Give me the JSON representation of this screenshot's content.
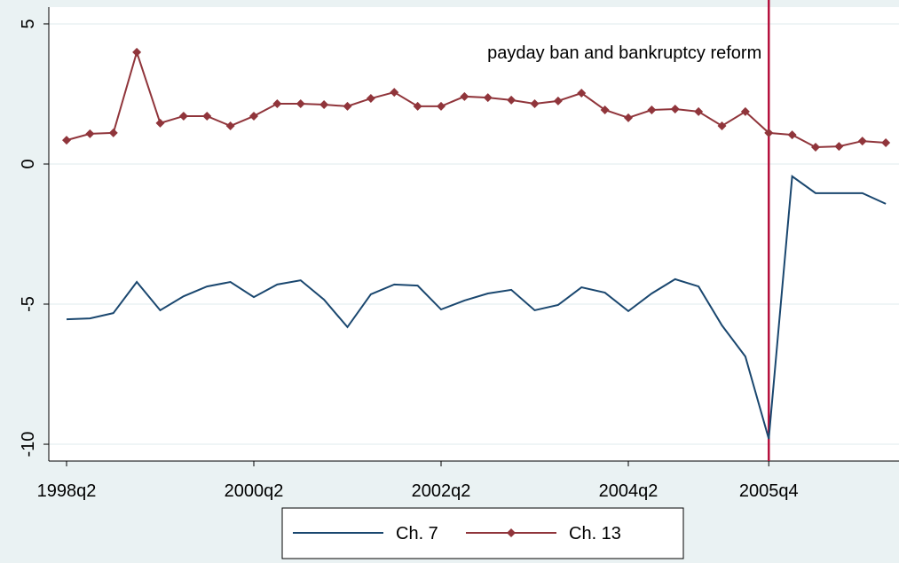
{
  "chart_data": {
    "type": "line",
    "categories": [
      "1998q2",
      null,
      null,
      null,
      null,
      null,
      null,
      null,
      "2000q2",
      null,
      null,
      null,
      null,
      null,
      null,
      null,
      "2002q2",
      null,
      null,
      null,
      null,
      null,
      null,
      null,
      "2004q2",
      null,
      null,
      null,
      null,
      null,
      "2005q4",
      null,
      null,
      null,
      null,
      null
    ],
    "series": [
      {
        "name": "Ch. 7",
        "color": "#1a476f",
        "marker": false,
        "values": [
          -5.54,
          -5.51,
          -5.32,
          -4.21,
          -5.22,
          -4.72,
          -4.37,
          -4.21,
          -4.75,
          -4.3,
          -4.15,
          -4.84,
          -5.82,
          -4.65,
          -4.3,
          -4.34,
          -5.19,
          -4.87,
          -4.62,
          -4.49,
          -5.22,
          -5.03,
          -4.4,
          -4.59,
          -5.25,
          -4.62,
          -4.11,
          -4.37,
          -5.76,
          -6.87,
          -9.81,
          -0.44,
          -1.04,
          -1.04,
          -1.04,
          -1.42
        ]
      },
      {
        "name": "Ch. 13",
        "color": "#90353b",
        "marker": true,
        "values": [
          0.85,
          1.08,
          1.11,
          3.99,
          1.46,
          1.71,
          1.71,
          1.36,
          1.71,
          2.15,
          2.15,
          2.12,
          2.06,
          2.34,
          2.56,
          2.06,
          2.06,
          2.41,
          2.37,
          2.28,
          2.15,
          2.25,
          2.53,
          1.93,
          1.65,
          1.93,
          1.96,
          1.87,
          1.36,
          1.87,
          1.11,
          1.04,
          0.6,
          0.63,
          0.82,
          0.76
        ]
      }
    ],
    "ylim": [
      -10.6,
      5.6
    ],
    "yticks": [
      -10,
      -5,
      0,
      5
    ],
    "grid": true,
    "event": {
      "category_index": 30,
      "label": "payday ban and bankruptcy reform",
      "color": "#b5123e"
    },
    "legend": "bottom"
  }
}
